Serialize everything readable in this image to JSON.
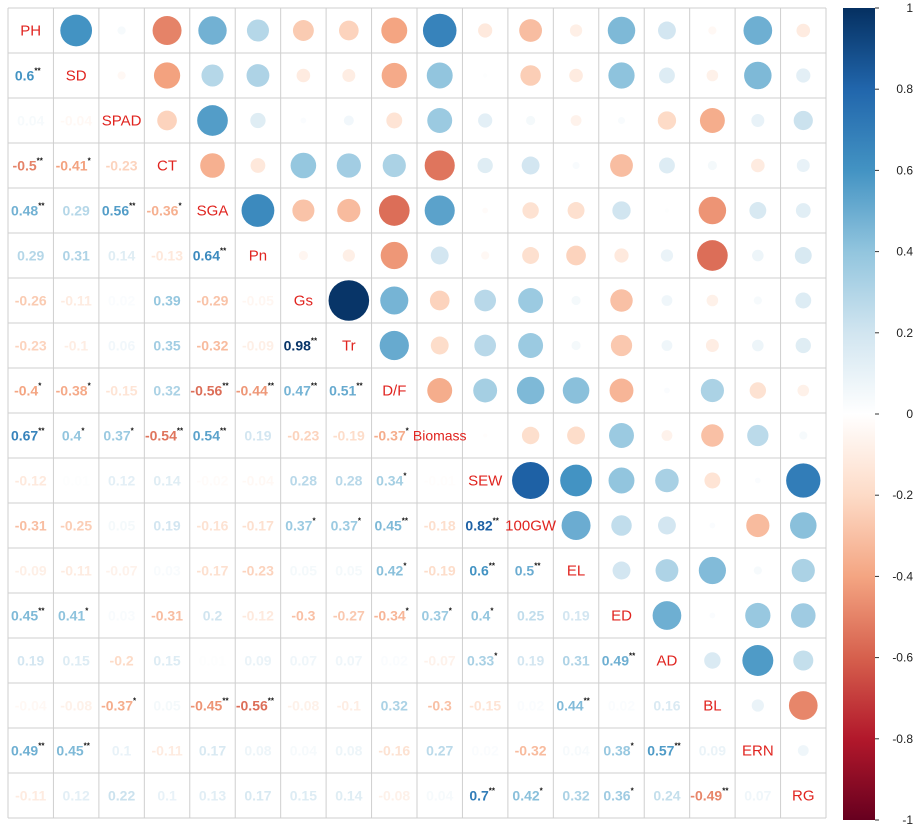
{
  "chart_data": {
    "type": "heatmap",
    "variables": [
      "PH",
      "SD",
      "SPAD",
      "CT",
      "SGA",
      "Pn",
      "Gs",
      "Tr",
      "D/F",
      "Biomass",
      "SEW",
      "100GW",
      "EL",
      "ED",
      "AD",
      "BL",
      "ERN",
      "RG"
    ],
    "lower_triangle": [
      [],
      [
        "0.6**"
      ],
      [
        "0.04",
        "-0.04"
      ],
      [
        "-0.5**",
        "-0.41*",
        "-0.23"
      ],
      [
        "0.48**",
        "0.29",
        "0.56**",
        "-0.36*"
      ],
      [
        "0.29",
        "0.31",
        "0.14",
        "-0.13",
        "0.64**"
      ],
      [
        "-0.26",
        "-0.11",
        "0.02",
        "0.39",
        "-0.29",
        "-0.05"
      ],
      [
        "-0.23",
        "-0.1",
        "0.06",
        "0.35",
        "-0.32",
        "-0.09",
        "0.98**"
      ],
      [
        "-0.4*",
        "-0.38*",
        "-0.15",
        "0.32",
        "-0.56**",
        "-0.44**",
        "0.47**",
        "0.51**"
      ],
      [
        "0.67**",
        "0.4*",
        "0.37*",
        "-0.54**",
        "0.54**",
        "0.19",
        "-0.23",
        "-0.19",
        "-0.37*"
      ],
      [
        "-0.12",
        "0.01",
        "0.12",
        "0.14",
        "-0.02",
        "-0.04",
        "0.28",
        "0.28",
        "0.34*",
        "-0.01"
      ],
      [
        "-0.31",
        "-0.25",
        "0.05",
        "0.19",
        "-0.16",
        "-0.17",
        "0.37*",
        "0.37*",
        "0.45**",
        "-0.18",
        "0.82**"
      ],
      [
        "-0.09",
        "-0.11",
        "-0.07",
        "0.03",
        "-0.17",
        "-0.23",
        "0.05",
        "0.05",
        "0.42*",
        "-0.19",
        "0.6**",
        "0.5**"
      ],
      [
        "0.45**",
        "0.41*",
        "0.03",
        "-0.31",
        "0.2",
        "-0.12",
        "-0.3",
        "-0.27",
        "-0.34*",
        "0.37*",
        "0.4*",
        "0.25",
        "0.19"
      ],
      [
        "0.19",
        "0.15",
        "-0.2",
        "0.15",
        "0.01",
        "0.09",
        "0.07",
        "0.07",
        "0.02",
        "-0.07",
        "0.33*",
        "0.19",
        "0.31",
        "0.49**"
      ],
      [
        "-0.04",
        "-0.08",
        "-0.37*",
        "0.05",
        "-0.45**",
        "-0.56**",
        "-0.08",
        "-0.1",
        "0.32",
        "-0.3",
        "-0.15",
        "0.02",
        "0.44**",
        "0.02",
        "0.16"
      ],
      [
        "0.49**",
        "0.45**",
        "0.1",
        "-0.11",
        "0.17",
        "0.08",
        "0.04",
        "0.08",
        "-0.16",
        "0.27",
        "0.02",
        "-0.32",
        "0.04",
        "0.38*",
        "0.57**",
        "0.09"
      ],
      [
        "-0.11",
        "0.12",
        "0.22",
        "0.1",
        "0.13",
        "0.17",
        "0.15",
        "0.14",
        "-0.08",
        "0.04",
        "0.7**",
        "0.42*",
        "0.32",
        "0.36*",
        "0.24",
        "-0.49**",
        "0.07"
      ]
    ],
    "colorbar": {
      "range": [
        -1,
        1
      ],
      "ticks": [
        "1",
        "0.8",
        "0.6",
        "0.4",
        "0.2",
        "0",
        "-0.2",
        "-0.4",
        "-0.6",
        "-0.8",
        "-1"
      ],
      "colors": [
        "#67001f",
        "#b2182b",
        "#d6604d",
        "#f4a582",
        "#fddbc7",
        "#ffffff",
        "#d1e5f0",
        "#92c5de",
        "#4393c3",
        "#2166ac",
        "#053061"
      ]
    }
  }
}
